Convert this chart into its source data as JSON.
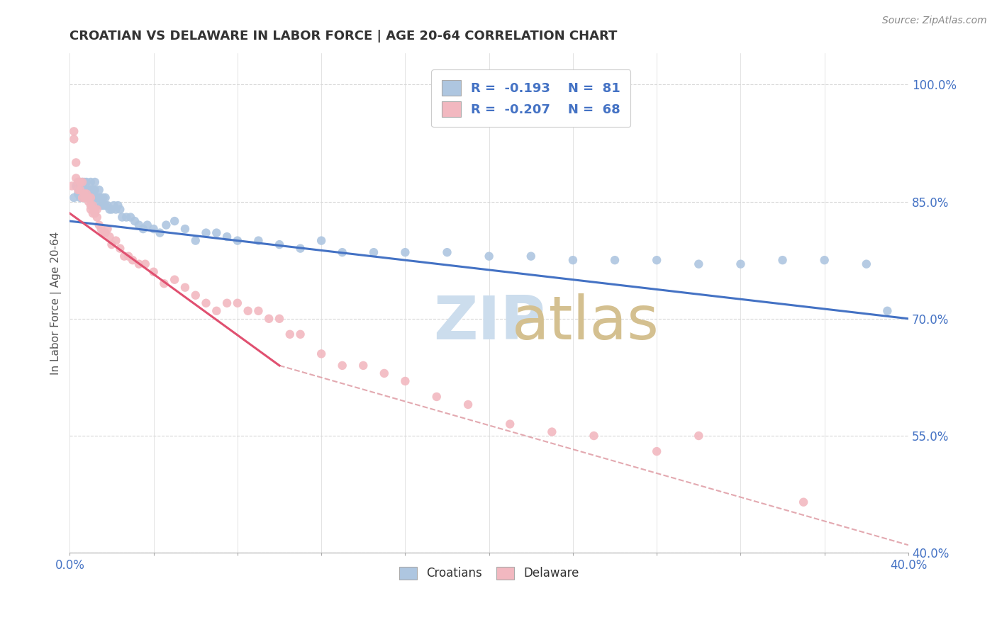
{
  "title": "CROATIAN VS DELAWARE IN LABOR FORCE | AGE 20-64 CORRELATION CHART",
  "source": "Source: ZipAtlas.com",
  "ylabel": "In Labor Force | Age 20-64",
  "xlim": [
    0.0,
    0.4
  ],
  "ylim": [
    0.4,
    1.04
  ],
  "xticks": [
    0.0,
    0.04,
    0.08,
    0.12,
    0.16,
    0.2,
    0.24,
    0.28,
    0.32,
    0.36,
    0.4
  ],
  "xtick_labels": [
    "0.0%",
    "",
    "",
    "",
    "",
    "",
    "",
    "",
    "",
    "",
    "40.0%"
  ],
  "yticks": [
    0.4,
    0.55,
    0.7,
    0.85,
    1.0
  ],
  "ytick_labels": [
    "40.0%",
    "55.0%",
    "70.0%",
    "85.0%",
    "100.0%"
  ],
  "blue_R": -0.193,
  "blue_N": 81,
  "pink_R": -0.207,
  "pink_N": 68,
  "blue_color": "#aec6e0",
  "pink_color": "#f2b8c0",
  "blue_line_color": "#4472c4",
  "pink_line_color": "#e05070",
  "dashed_line_color": "#e0a0a8",
  "title_color": "#333333",
  "source_color": "#888888",
  "legend_color": "#4472c4",
  "blue_trend_x": [
    0.0,
    0.4
  ],
  "blue_trend_y": [
    0.825,
    0.7
  ],
  "pink_trend_x": [
    0.0,
    0.1
  ],
  "pink_trend_y": [
    0.835,
    0.64
  ],
  "dashed_trend_x": [
    0.1,
    0.4
  ],
  "dashed_trend_y": [
    0.64,
    0.41
  ],
  "background_color": "#ffffff",
  "grid_color": "#d8d8d8",
  "watermark_zip_color": "#ccdded",
  "watermark_atlas_color": "#d4c090",
  "blue_scatter_x": [
    0.002,
    0.003,
    0.004,
    0.004,
    0.005,
    0.005,
    0.005,
    0.006,
    0.006,
    0.007,
    0.007,
    0.007,
    0.008,
    0.008,
    0.008,
    0.009,
    0.009,
    0.009,
    0.01,
    0.01,
    0.01,
    0.01,
    0.011,
    0.011,
    0.011,
    0.012,
    0.012,
    0.012,
    0.013,
    0.013,
    0.014,
    0.014,
    0.015,
    0.015,
    0.016,
    0.016,
    0.017,
    0.017,
    0.018,
    0.019,
    0.02,
    0.021,
    0.022,
    0.023,
    0.024,
    0.025,
    0.027,
    0.029,
    0.031,
    0.033,
    0.035,
    0.037,
    0.04,
    0.043,
    0.046,
    0.05,
    0.055,
    0.06,
    0.065,
    0.07,
    0.075,
    0.08,
    0.09,
    0.1,
    0.11,
    0.12,
    0.13,
    0.145,
    0.16,
    0.18,
    0.2,
    0.22,
    0.24,
    0.26,
    0.28,
    0.3,
    0.32,
    0.34,
    0.36,
    0.38,
    0.39
  ],
  "blue_scatter_y": [
    0.855,
    0.87,
    0.86,
    0.875,
    0.86,
    0.87,
    0.855,
    0.865,
    0.875,
    0.855,
    0.865,
    0.875,
    0.855,
    0.865,
    0.875,
    0.855,
    0.865,
    0.855,
    0.865,
    0.875,
    0.855,
    0.865,
    0.855,
    0.865,
    0.855,
    0.855,
    0.865,
    0.875,
    0.85,
    0.855,
    0.855,
    0.865,
    0.845,
    0.855,
    0.845,
    0.855,
    0.845,
    0.855,
    0.845,
    0.84,
    0.84,
    0.845,
    0.84,
    0.845,
    0.84,
    0.83,
    0.83,
    0.83,
    0.825,
    0.82,
    0.815,
    0.82,
    0.815,
    0.81,
    0.82,
    0.825,
    0.815,
    0.8,
    0.81,
    0.81,
    0.805,
    0.8,
    0.8,
    0.795,
    0.79,
    0.8,
    0.785,
    0.785,
    0.785,
    0.785,
    0.78,
    0.78,
    0.775,
    0.775,
    0.775,
    0.77,
    0.77,
    0.775,
    0.775,
    0.77,
    0.71
  ],
  "pink_scatter_x": [
    0.001,
    0.002,
    0.002,
    0.003,
    0.003,
    0.004,
    0.004,
    0.005,
    0.005,
    0.006,
    0.006,
    0.007,
    0.007,
    0.008,
    0.008,
    0.009,
    0.009,
    0.01,
    0.01,
    0.01,
    0.011,
    0.011,
    0.012,
    0.012,
    0.013,
    0.013,
    0.014,
    0.015,
    0.016,
    0.017,
    0.018,
    0.019,
    0.02,
    0.022,
    0.024,
    0.026,
    0.028,
    0.03,
    0.033,
    0.036,
    0.04,
    0.045,
    0.05,
    0.055,
    0.06,
    0.065,
    0.07,
    0.075,
    0.08,
    0.085,
    0.09,
    0.095,
    0.1,
    0.105,
    0.11,
    0.12,
    0.13,
    0.14,
    0.15,
    0.16,
    0.175,
    0.19,
    0.21,
    0.23,
    0.25,
    0.28,
    0.3,
    0.35
  ],
  "pink_scatter_y": [
    0.87,
    0.94,
    0.93,
    0.88,
    0.9,
    0.875,
    0.865,
    0.875,
    0.865,
    0.875,
    0.855,
    0.86,
    0.855,
    0.86,
    0.855,
    0.85,
    0.855,
    0.845,
    0.855,
    0.84,
    0.845,
    0.835,
    0.84,
    0.835,
    0.84,
    0.83,
    0.82,
    0.815,
    0.81,
    0.81,
    0.815,
    0.805,
    0.795,
    0.8,
    0.79,
    0.78,
    0.78,
    0.775,
    0.77,
    0.77,
    0.76,
    0.745,
    0.75,
    0.74,
    0.73,
    0.72,
    0.71,
    0.72,
    0.72,
    0.71,
    0.71,
    0.7,
    0.7,
    0.68,
    0.68,
    0.655,
    0.64,
    0.64,
    0.63,
    0.62,
    0.6,
    0.59,
    0.565,
    0.555,
    0.55,
    0.53,
    0.55,
    0.465
  ]
}
